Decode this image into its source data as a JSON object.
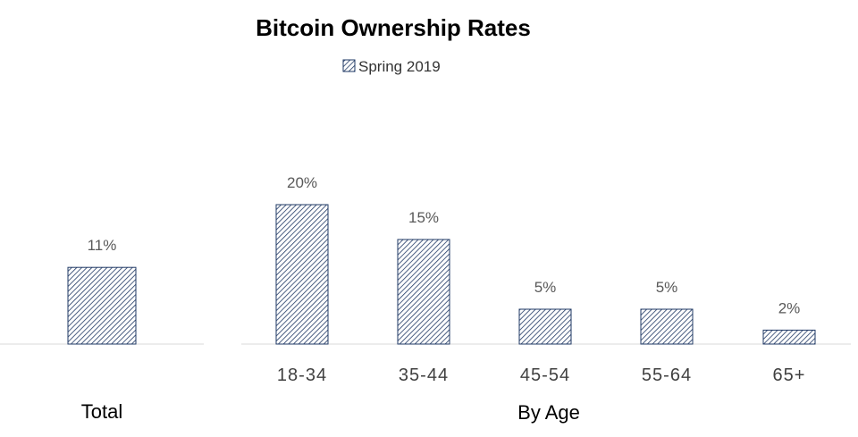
{
  "chart_data": {
    "type": "bar",
    "title": "Bitcoin Ownership Rates",
    "legend": {
      "entries": [
        "Spring 2019"
      ],
      "placement": "top-center"
    },
    "series": [
      {
        "name": "Spring 2019",
        "pattern": "diagonal-hatch",
        "color": "#1f3864"
      }
    ],
    "groups": [
      {
        "label": "Total",
        "categories": [
          ""
        ],
        "values": [
          11
        ],
        "value_labels": [
          "11%"
        ]
      },
      {
        "label": "By Age",
        "categories": [
          "18-34",
          "35-44",
          "45-54",
          "55-64",
          "65+"
        ],
        "values": [
          20,
          15,
          5,
          5,
          2
        ],
        "value_labels": [
          "20%",
          "15%",
          "5%",
          "5%",
          "2%"
        ]
      }
    ],
    "ylim": [
      0,
      25
    ],
    "grid": false,
    "axis_color": "#d9d9d9"
  }
}
